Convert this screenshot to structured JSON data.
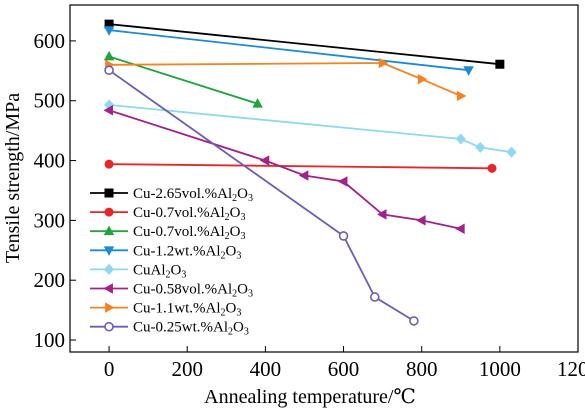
{
  "chart_data": {
    "type": "line",
    "title": "",
    "xlabel": "Annealing temperature/℃",
    "ylabel": "Tensile strength/MPa",
    "xlim": [
      -100,
      1200
    ],
    "ylim": [
      80,
      660
    ],
    "xticks": [
      0,
      200,
      400,
      600,
      800,
      1000,
      1200
    ],
    "yticks": [
      100,
      200,
      300,
      400,
      500,
      600
    ],
    "grid": false,
    "legend_position": "bottom-left",
    "series": [
      {
        "name": "Cu-2.65vol.%Al2O3",
        "label_main": "Cu-2.65vol.%Al",
        "label_sub1": "2",
        "label_mid": "O",
        "label_sub2": "3",
        "color": "#000000",
        "marker": "square",
        "filled": true,
        "x": [
          0,
          1000
        ],
        "y": [
          628,
          561
        ]
      },
      {
        "name": "Cu-0.7vol.%Al2O3",
        "label_main": "Cu-0.7vol.%Al",
        "label_sub1": "2",
        "label_mid": "O",
        "label_sub2": "3",
        "color": "#e8262a",
        "marker": "circle",
        "filled": true,
        "x": [
          0,
          980
        ],
        "y": [
          394,
          387
        ]
      },
      {
        "name": "Cu-0.7vol.%Al2O3",
        "label_main": "Cu-0.7vol.%Al",
        "label_sub1": "2",
        "label_mid": "O",
        "label_sub2": "3",
        "color": "#1fa53c",
        "marker": "triangle-up",
        "filled": true,
        "x": [
          0,
          380
        ],
        "y": [
          574,
          495
        ]
      },
      {
        "name": "Cu-1.2wt.%Al2O3",
        "label_main": "Cu-1.2wt.%Al",
        "label_sub1": "2",
        "label_mid": "O",
        "label_sub2": "3",
        "color": "#1b8ad8",
        "marker": "triangle-down",
        "filled": true,
        "x": [
          0,
          920
        ],
        "y": [
          618,
          551
        ]
      },
      {
        "name": "CuAl2O3",
        "label_main": "CuAl",
        "label_sub1": "2",
        "label_mid": "O",
        "label_sub2": "3",
        "color": "#8fd8f2",
        "marker": "diamond",
        "filled": true,
        "x": [
          0,
          900,
          950,
          1030
        ],
        "y": [
          493,
          436,
          422,
          414
        ]
      },
      {
        "name": "Cu-0.58vol.%Al2O3",
        "label_main": "Cu-0.58vol.%Al",
        "label_sub1": "2",
        "label_mid": "O",
        "label_sub2": "3",
        "color": "#a0228a",
        "marker": "triangle-left",
        "filled": true,
        "x": [
          0,
          400,
          500,
          600,
          700,
          800,
          900
        ],
        "y": [
          484,
          400,
          375,
          365,
          310,
          300,
          286
        ]
      },
      {
        "name": "Cu-1.1wt.%Al2O3",
        "label_main": "Cu-1.1wt.%Al",
        "label_sub1": "2",
        "label_mid": "O",
        "label_sub2": "3",
        "color": "#f58220",
        "marker": "triangle-right",
        "filled": true,
        "x": [
          0,
          700,
          800,
          900
        ],
        "y": [
          560,
          563,
          536,
          508
        ]
      },
      {
        "name": "Cu-0.25wt.%Al2O3",
        "label_main": "Cu-0.25wt.%Al",
        "label_sub1": "2",
        "label_mid": "O",
        "label_sub2": "3",
        "color": "#6a5fb4",
        "marker": "circle",
        "filled": false,
        "x": [
          0,
          600,
          680,
          780
        ],
        "y": [
          551,
          274,
          172,
          132
        ]
      }
    ]
  }
}
